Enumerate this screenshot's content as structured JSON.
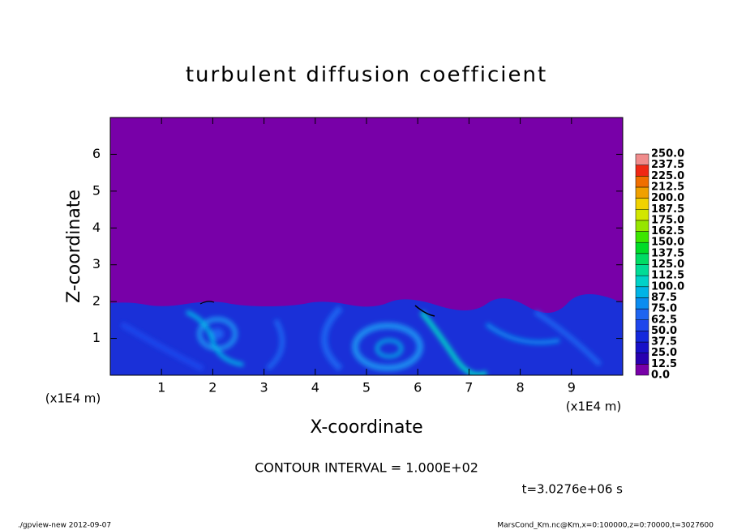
{
  "chart_data": {
    "type": "contour",
    "title": "turbulent diffusion coefficient",
    "x_label": "X-coordinate",
    "y_label": "Z-coordinate",
    "x_unit_labels": [
      "(x1E4 m)",
      "(x1E4 m)"
    ],
    "xlim": [
      0,
      10
    ],
    "ylim": [
      0,
      7
    ],
    "xticks": [
      1,
      2,
      3,
      4,
      5,
      6,
      7,
      8,
      9
    ],
    "yticks": [
      1,
      2,
      3,
      4,
      5,
      6
    ],
    "colorbar": {
      "levels": [
        {
          "value": 0,
          "label": "0.0"
        },
        12.5,
        {
          "value": 25,
          "label": "25.0"
        },
        37.5,
        {
          "value": 50,
          "label": "50.0"
        },
        62.5,
        {
          "value": 75,
          "label": "75.0"
        },
        87.5,
        {
          "value": 100,
          "label": "100.0"
        },
        112.5,
        {
          "value": 125,
          "label": "125.0"
        },
        137.5,
        {
          "value": 150,
          "label": "150.0"
        },
        162.5,
        {
          "value": 175,
          "label": "175.0"
        },
        187.5,
        {
          "value": 200,
          "label": "200.0"
        },
        212.5,
        {
          "value": 225,
          "label": "225.0"
        },
        237.5,
        {
          "value": 250,
          "label": "250.0"
        }
      ],
      "colors": [
        "#7800a8",
        "#2800b0",
        "#1810c8",
        "#1428dc",
        "#1e46ec",
        "#1e64f0",
        "#0a8cf0",
        "#00b4e6",
        "#00d2c8",
        "#00dc96",
        "#00dc64",
        "#00dc28",
        "#3ce600",
        "#96e600",
        "#d2e600",
        "#f0d200",
        "#f0a000",
        "#f06e00",
        "#f02814",
        "#f08c8c"
      ]
    },
    "contour_interval": "CONTOUR INTERVAL = 1.000E+02",
    "time_label": "t=3.0276e+06 s",
    "footer_left": "./gpview-new   2012-09-07",
    "footer_right": "MarsCond_Km.nc@Km,x=0:100000,z=0:70000,t=3027600"
  }
}
